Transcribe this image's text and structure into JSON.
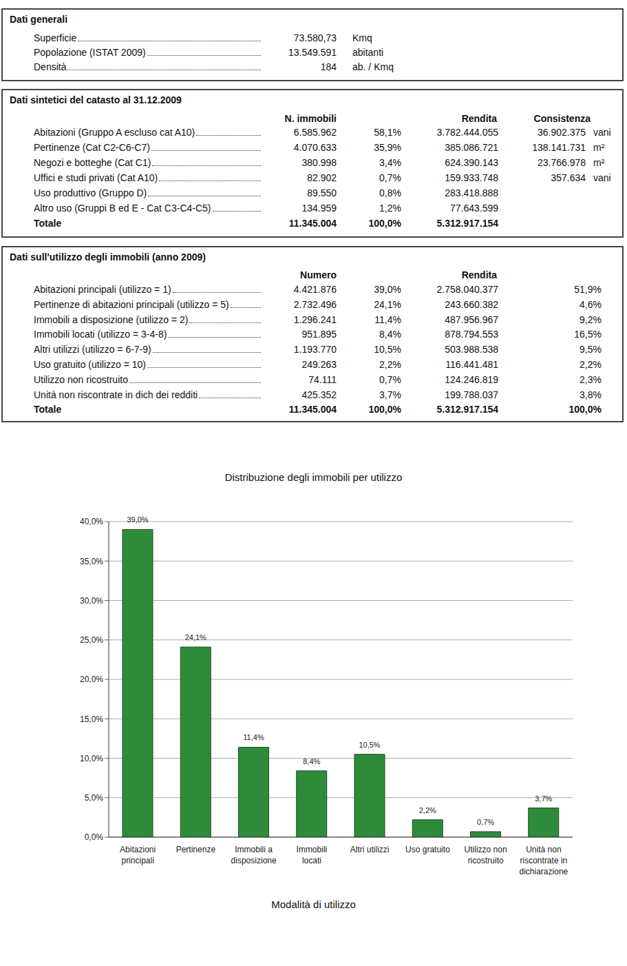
{
  "dati_generali": {
    "title": "Dati generali",
    "rows": [
      {
        "label": "Superficie",
        "value": "73.580,73",
        "unit": "Kmq"
      },
      {
        "label": "Popolazione (ISTAT 2009)",
        "value": "13.549.591",
        "unit": "abitanti"
      },
      {
        "label": "Densità",
        "value": "184",
        "unit": "ab. / Kmq"
      }
    ]
  },
  "catasto": {
    "title": "Dati sintetici del catasto al 31.12.2009",
    "headers": {
      "numero": "N. immobili",
      "rendita": "Rendita",
      "consistenza": "Consistenza"
    },
    "rows": [
      {
        "label": "Abitazioni (Gruppo A escluso cat A10)",
        "numero": "6.585.962",
        "pct": "58,1%",
        "rendita": "3.782.444.055",
        "consistenza": "36.902.375",
        "unit": "vani"
      },
      {
        "label": "Pertinenze (Cat C2-C6-C7)",
        "numero": "4.070.633",
        "pct": "35,9%",
        "rendita": "385.086.721",
        "consistenza": "138.141.731",
        "unit": "m²"
      },
      {
        "label": "Negozi e botteghe (Cat C1)",
        "numero": "380.998",
        "pct": "3,4%",
        "rendita": "624.390.143",
        "consistenza": "23.766.978",
        "unit": "m²"
      },
      {
        "label": "Uffici e studi privati (Cat A10)",
        "numero": "82.902",
        "pct": "0,7%",
        "rendita": "159.933.748",
        "consistenza": "357.634",
        "unit": "vani"
      },
      {
        "label": "Uso produttivo (Gruppo D)",
        "numero": "89.550",
        "pct": "0,8%",
        "rendita": "283.418.888"
      },
      {
        "label": "Altro uso (Gruppi B ed E - Cat C3-C4-C5)",
        "numero": "134.959",
        "pct": "1,2%",
        "rendita": "77.643.599"
      }
    ],
    "total": {
      "label": "Totale",
      "numero": "11.345.004",
      "pct": "100,0%",
      "rendita": "5.312.917.154"
    }
  },
  "utilizzo": {
    "title": "Dati sull'utilizzo degli immobili (anno 2009)",
    "headers": {
      "numero": "Numero",
      "rendita": "Rendita"
    },
    "rows": [
      {
        "label": "Abitazioni principali (utilizzo = 1)",
        "numero": "4.421.876",
        "pct": "39,0%",
        "rendita": "2.758.040.377",
        "pct_rendita": "51,9%"
      },
      {
        "label": "Pertinenze di abitazioni principali (utilizzo = 5)",
        "numero": "2.732.496",
        "pct": "24,1%",
        "rendita": "243.660.382",
        "pct_rendita": "4,6%"
      },
      {
        "label": "Immobili a disposizione (utilizzo = 2)",
        "numero": "1.296.241",
        "pct": "11,4%",
        "rendita": "487.956.967",
        "pct_rendita": "9,2%"
      },
      {
        "label": "Immobili locati (utilizzo = 3-4-8)",
        "numero": "951.895",
        "pct": "8,4%",
        "rendita": "878.794.553",
        "pct_rendita": "16,5%"
      },
      {
        "label": "Altri utilizzi (utilizzo = 6-7-9)",
        "numero": "1.193.770",
        "pct": "10,5%",
        "rendita": "503.988.538",
        "pct_rendita": "9,5%"
      },
      {
        "label": "Uso gratuito (utilizzo = 10)",
        "numero": "249.263",
        "pct": "2,2%",
        "rendita": "116.441.481",
        "pct_rendita": "2,2%"
      },
      {
        "label": "Utilizzo non ricostruito",
        "numero": "74.111",
        "pct": "0,7%",
        "rendita": "124.246.819",
        "pct_rendita": "2,3%"
      },
      {
        "label": "Unità non riscontrate in dich dei redditi",
        "numero": "425.352",
        "pct": "3,7%",
        "rendita": "199.788.037",
        "pct_rendita": "3,8%"
      }
    ],
    "total": {
      "label": "Totale",
      "numero": "11.345.004",
      "pct": "100,0%",
      "rendita": "5.312.917.154",
      "pct_rendita": "100,0%"
    }
  },
  "chart_data": {
    "type": "bar",
    "title": "Distribuzione degli immobili per utilizzo",
    "x_label": "Modalità di utilizzo",
    "categories": [
      "Abitazioni principali",
      "Pertinenze",
      "Immobili a disposizione",
      "Immobili locati",
      "Altri utilizzi",
      "Uso gratuito",
      "Utilizzo non ricostruito",
      "Unità non riscontrate in dichiarazione"
    ],
    "values": [
      39.0,
      24.1,
      11.4,
      8.4,
      10.5,
      2.2,
      0.7,
      3.7
    ],
    "value_labels": [
      "39,0%",
      "24,1%",
      "11,4%",
      "8,4%",
      "10,5%",
      "2,2%",
      "0,7%",
      "3,7%"
    ],
    "data_labels": true,
    "color": "#2e8b3a",
    "ylim": [
      0,
      40
    ],
    "yticks": [
      {
        "value": 0,
        "label": "0,0%"
      },
      {
        "value": 5,
        "label": "5,0%"
      },
      {
        "value": 10,
        "label": "10,0%"
      },
      {
        "value": 15,
        "label": "15,0%"
      },
      {
        "value": 20,
        "label": "20,0%"
      },
      {
        "value": 25,
        "label": "25,0%"
      },
      {
        "value": 30,
        "label": "30,0%"
      },
      {
        "value": 35,
        "label": "35,0%"
      },
      {
        "value": 40,
        "label": "40,0%"
      }
    ],
    "grid": true
  }
}
